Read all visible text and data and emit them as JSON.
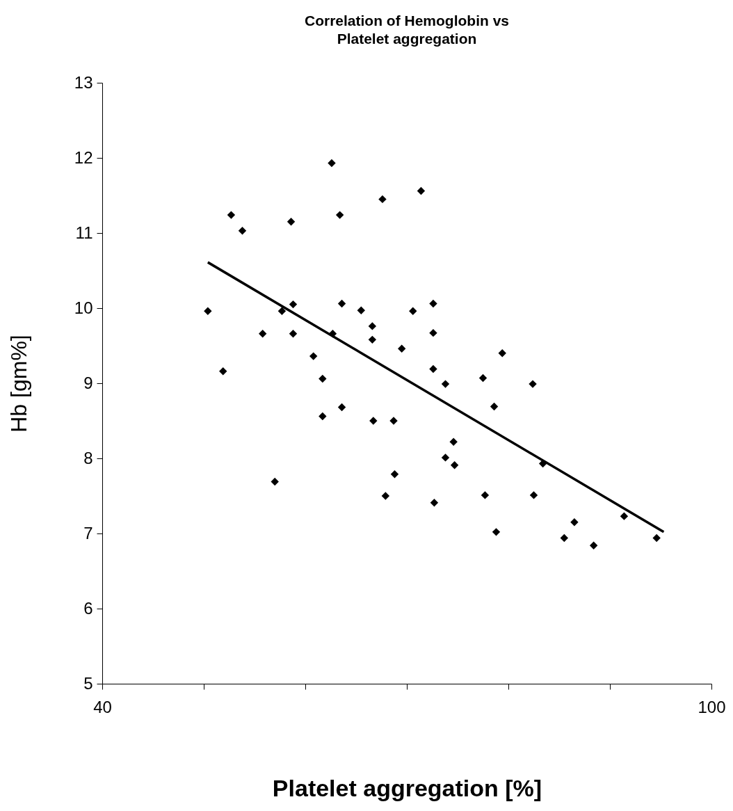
{
  "chart_data": {
    "type": "scatter",
    "title": "Correlation of Hemoglobin vs Platelet aggregation",
    "xlabel": "Platelet aggregation [%]",
    "ylabel": "Hb [gm%]",
    "xlim": [
      40,
      100
    ],
    "xticks": [
      40,
      {
        "value": 50,
        "label": null
      },
      {
        "value": 60,
        "label": null
      },
      {
        "value": 70,
        "label": null
      },
      {
        "value": 80,
        "label": null
      },
      {
        "value": 90,
        "label": null
      },
      100
    ],
    "ylim": [
      5,
      13
    ],
    "yticks": [
      5,
      6,
      7,
      8,
      9,
      10,
      11,
      12,
      13
    ],
    "grid": false,
    "marker": "diamond",
    "series": [
      {
        "color": "#000000",
        "x": [
          50.4,
          51.9,
          52.7,
          53.8,
          55.8,
          57.0,
          57.7,
          58.6,
          58.8,
          58.8,
          60.8,
          61.7,
          61.7,
          62.6,
          62.7,
          63.4,
          63.6,
          63.6,
          65.5,
          66.6,
          66.6,
          66.7,
          67.6,
          67.9,
          68.7,
          68.8,
          69.5,
          70.6,
          71.4,
          72.6,
          72.6,
          72.6,
          72.7,
          73.8,
          73.8,
          74.6,
          74.7,
          77.5,
          77.7,
          78.6,
          78.8,
          79.4,
          82.4,
          82.5,
          83.4,
          85.5,
          86.5,
          88.4,
          91.4,
          94.6
        ],
        "values": [
          9.96,
          9.16,
          11.24,
          11.03,
          9.66,
          7.69,
          9.96,
          11.15,
          10.05,
          9.66,
          9.36,
          9.06,
          8.56,
          11.93,
          9.66,
          11.24,
          10.06,
          8.68,
          9.97,
          9.76,
          9.58,
          8.5,
          11.45,
          7.5,
          8.5,
          7.79,
          9.46,
          9.96,
          11.56,
          10.06,
          9.67,
          9.19,
          7.41,
          8.99,
          8.01,
          8.22,
          7.91,
          9.07,
          7.51,
          8.69,
          7.02,
          9.4,
          8.99,
          7.51,
          7.93,
          6.94,
          7.15,
          6.84,
          7.23,
          6.94
        ]
      },
      {
        "type": "line",
        "marker": "none",
        "color": "#000000",
        "x": [
          50.4,
          95.3
        ],
        "values": [
          10.61,
          7.02
        ]
      }
    ]
  }
}
